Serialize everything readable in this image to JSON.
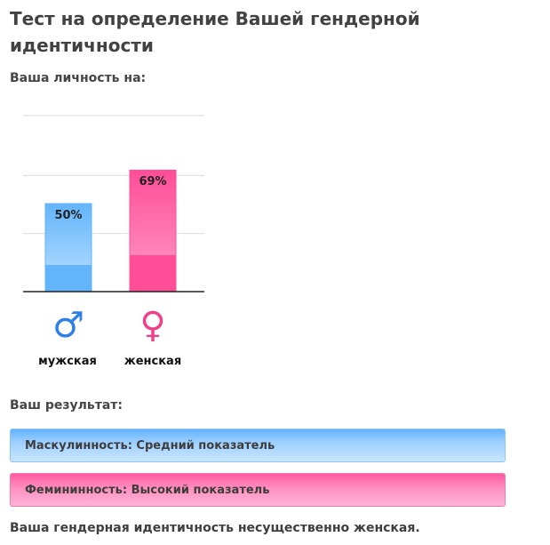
{
  "page": {
    "title": "Тест на определение Вашей гендерной идентичности",
    "subtitle": "Ваша личность на:",
    "result_heading": "Ваш результат:",
    "conclusion": "Ваша гендерная идентичность несущественно женская."
  },
  "chart_data": {
    "type": "bar",
    "categories": [
      "мужская",
      "женская"
    ],
    "values": [
      50,
      69
    ],
    "value_labels": [
      "50%",
      "69%"
    ],
    "ylim": [
      0,
      100
    ],
    "grid": true,
    "colors": [
      "#62b5fb",
      "#ff4d97"
    ],
    "icons": [
      "male-symbol-icon",
      "female-symbol-icon"
    ]
  },
  "icons": {
    "male": "♂",
    "female": "♀"
  },
  "results": [
    {
      "label": "Маскулинность: Средний показатель",
      "color": "#7ec0fb"
    },
    {
      "label": "Фемининность: Высокий показатель",
      "color": "#ff6aa8"
    }
  ]
}
